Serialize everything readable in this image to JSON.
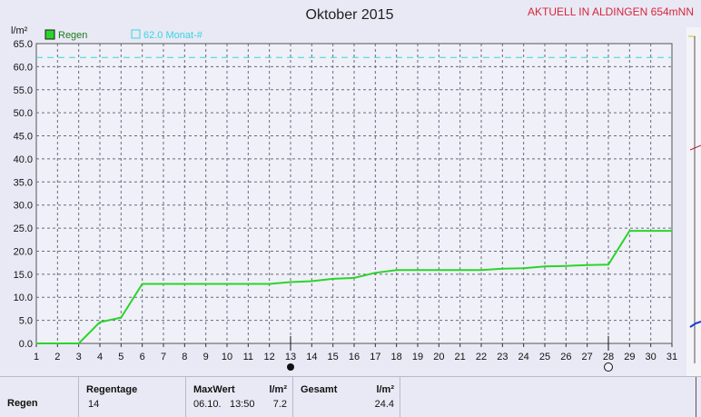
{
  "header": {
    "title": "Oktober 2015",
    "status": "AKTUELL IN ALDINGEN 654mNN",
    "y_unit": "l/m²"
  },
  "legend": {
    "series_label": "Regen",
    "reference_label": "62.0 Monat-#"
  },
  "colors": {
    "series": "#2bd42b",
    "reference": "#35d6e0",
    "grid": "#6a6a7a",
    "status": "#d6263a"
  },
  "chart_data": {
    "type": "line",
    "title": "Oktober 2015",
    "ylabel": "l/m²",
    "xlabel": "",
    "xlim": [
      1,
      31
    ],
    "ylim": [
      0,
      65
    ],
    "x_ticks": [
      1,
      2,
      3,
      4,
      5,
      6,
      7,
      8,
      9,
      10,
      11,
      12,
      13,
      14,
      15,
      16,
      17,
      18,
      19,
      20,
      21,
      22,
      23,
      24,
      25,
      26,
      27,
      28,
      29,
      30,
      31
    ],
    "y_ticks": [
      "0.0",
      "5.0",
      "10.0",
      "15.0",
      "20.0",
      "25.0",
      "30.0",
      "35.0",
      "40.0",
      "45.0",
      "50.0",
      "55.0",
      "60.0",
      "65.0"
    ],
    "grid": true,
    "legend_position": "top-left",
    "series": [
      {
        "name": "Regen",
        "x": [
          1,
          3,
          4,
          5,
          6,
          12,
          13,
          14,
          15,
          16,
          17,
          18,
          19,
          20,
          21,
          22,
          23,
          24,
          25,
          26,
          27,
          28,
          29,
          30,
          31
        ],
        "y": [
          0.0,
          0.0,
          4.6,
          5.6,
          12.9,
          12.9,
          13.3,
          13.5,
          14.0,
          14.2,
          15.3,
          15.9,
          15.9,
          15.9,
          15.9,
          15.9,
          16.2,
          16.3,
          16.7,
          16.8,
          17.0,
          17.1,
          24.4,
          24.4,
          24.4
        ]
      }
    ],
    "reference_line": {
      "name": "62.0 Monat-#",
      "value": 62.0
    },
    "markers": [
      {
        "x": 13,
        "shape": "filled-circle"
      },
      {
        "x": 28,
        "shape": "open-circle"
      }
    ]
  },
  "stats": {
    "row_label": "Regen",
    "regentage_label": "Regentage",
    "regentage_value": "14",
    "maxwert_label": "MaxWert",
    "maxwert_unit": "l/m²",
    "maxwert_date": "06.10.",
    "maxwert_time": "13:50",
    "maxwert_value": "7.2",
    "gesamt_label": "Gesamt",
    "gesamt_unit": "l/m²",
    "gesamt_value": "24.4"
  }
}
